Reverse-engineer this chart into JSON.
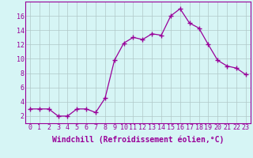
{
  "x": [
    0,
    1,
    2,
    3,
    4,
    5,
    6,
    7,
    8,
    9,
    10,
    11,
    12,
    13,
    14,
    15,
    16,
    17,
    18,
    19,
    20,
    21,
    22,
    23
  ],
  "y": [
    3,
    3,
    3,
    2,
    2,
    3,
    3,
    2.5,
    4.5,
    9.8,
    12.2,
    13,
    12.7,
    13.5,
    13.3,
    16.0,
    17.0,
    15.0,
    14.3,
    12.0,
    9.8,
    9.0,
    8.7,
    7.8
  ],
  "line_color": "#990099",
  "marker": "+",
  "marker_size": 4,
  "bg_color": "#d6f5f5",
  "grid_color": "#b0c8c8",
  "xlabel": "Windchill (Refroidissement éolien,°C)",
  "xlabel_fontsize": 7,
  "tick_fontsize": 6,
  "ylim": [
    1,
    18
  ],
  "xlim": [
    -0.5,
    23.5
  ],
  "yticks": [
    2,
    4,
    6,
    8,
    10,
    12,
    14,
    16
  ],
  "xticks": [
    0,
    1,
    2,
    3,
    4,
    5,
    6,
    7,
    8,
    9,
    10,
    11,
    12,
    13,
    14,
    15,
    16,
    17,
    18,
    19,
    20,
    21,
    22,
    23
  ]
}
